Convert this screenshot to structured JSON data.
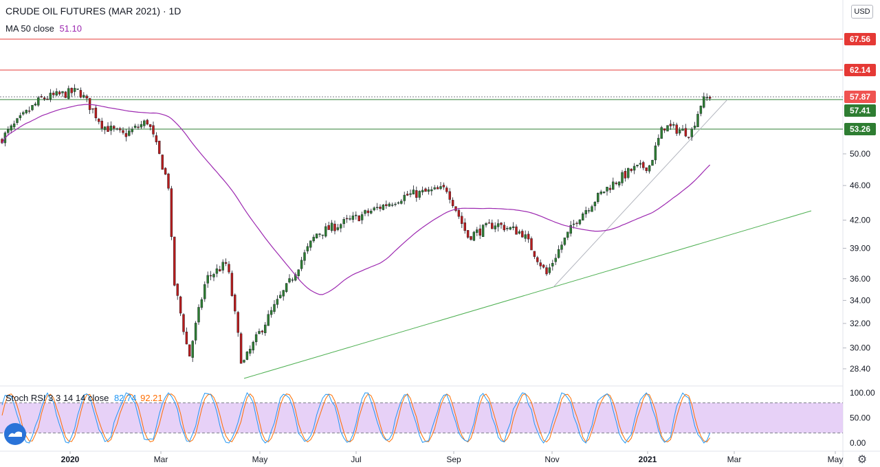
{
  "header": {
    "title": "CRUDE OIL FUTURES (MAR 2021) · 1D",
    "ma_label": "MA 50 close",
    "ma_value": "51.10",
    "currency": "USD"
  },
  "oscillator": {
    "label": "Stoch RSI 3 3 14 14 close",
    "k_value": "82.74",
    "d_value": "92.21",
    "axis_ticks": [
      "100.00",
      "50.00",
      "0.00"
    ]
  },
  "chart_data": {
    "type": "candlestick",
    "title": "CRUDE OIL FUTURES (MAR 2021) · 1D",
    "y_ticks": [
      "28.40",
      "30.00",
      "32.00",
      "34.00",
      "36.00",
      "39.00",
      "42.00",
      "46.00",
      "50.00"
    ],
    "x_ticks": [
      "2020",
      "Mar",
      "May",
      "Jul",
      "Sep",
      "Nov",
      "2021",
      "Mar",
      "May"
    ],
    "price_labels": [
      {
        "value": "67.56",
        "color": "#e53935"
      },
      {
        "value": "62.14",
        "color": "#e53935"
      },
      {
        "value": "57.87",
        "color": "#ef5350"
      },
      {
        "value": "57.41",
        "color": "#2e7d32"
      },
      {
        "value": "53.26",
        "color": "#2e7d32"
      }
    ],
    "series": [
      {
        "name": "MA 50 close",
        "last": 51.1,
        "color": "#9c27b0"
      }
    ],
    "horizontal_levels": [
      67.56,
      62.14,
      57.41,
      53.26
    ],
    "scale": "log",
    "colors": {
      "up": "#26a69a",
      "down": "#ef5350",
      "ma": "#9c27b0",
      "support": "#4caf50",
      "resistance": "#e53935"
    }
  },
  "icons": {
    "settings": "gear-icon",
    "logo": "tradingview-logo-icon"
  }
}
